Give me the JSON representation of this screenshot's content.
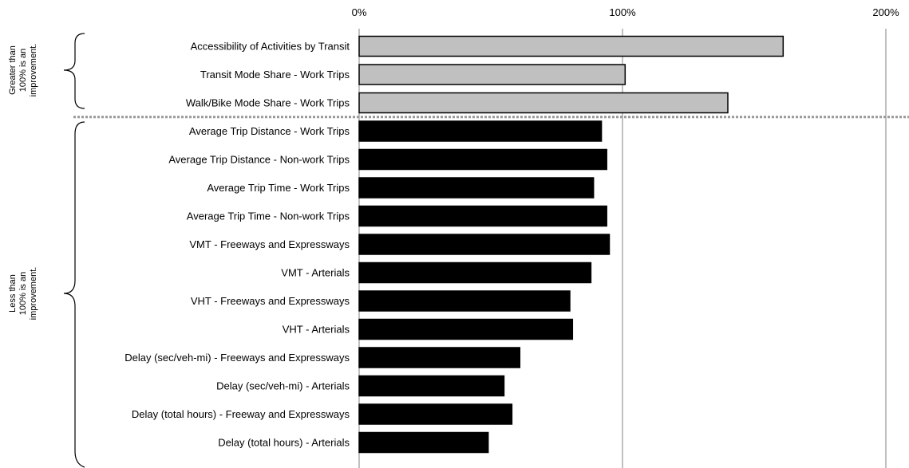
{
  "chart_data": {
    "type": "bar",
    "orientation": "horizontal",
    "xlim": [
      0,
      200
    ],
    "x_ticks": [
      "0%",
      "100%",
      "200%"
    ],
    "x_tick_values": [
      0,
      100,
      200
    ],
    "grid": true,
    "group_notes": {
      "greater": [
        "Greater than",
        "100% is an",
        "improvement."
      ],
      "less": [
        "Less than",
        "100% is an",
        "improvement."
      ]
    },
    "categories": [
      "Accessibility of Activities by Transit",
      "Transit Mode Share - Work Trips",
      "Walk/Bike Mode Share - Work Trips",
      "Average Trip Distance - Work Trips",
      "Average Trip Distance - Non-work Trips",
      "Average Trip Time - Work Trips",
      "Average Trip Time - Non-work Trips",
      "VMT - Freeways and Expressways",
      "VMT - Arterials",
      "VHT - Freeways and Expressways",
      "VHT - Arterials",
      "Delay (sec/veh-mi) - Freeways and Expressways",
      "Delay (sec/veh-mi) - Arterials",
      "Delay (total hours) - Freeway and Expressways",
      "Delay (total hours) - Arterials"
    ],
    "values": [
      161,
      101,
      140,
      92,
      94,
      89,
      94,
      95,
      88,
      80,
      81,
      61,
      55,
      58,
      49
    ],
    "bar_groups": [
      "greater",
      "greater",
      "greater",
      "less",
      "less",
      "less",
      "less",
      "less",
      "less",
      "less",
      "less",
      "less",
      "less",
      "less",
      "less"
    ],
    "colors": {
      "greater": "#c0c0c0",
      "less": "#000000",
      "divider": "#999999",
      "grid": "#808080"
    }
  }
}
